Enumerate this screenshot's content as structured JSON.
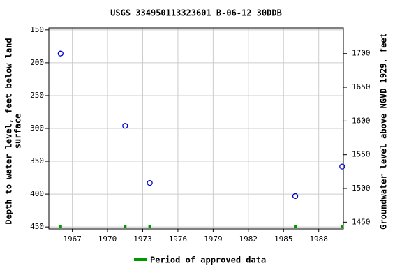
{
  "chart_data": {
    "type": "scatter",
    "title": "USGS 334950113323601 B-06-12 30DDB",
    "ylabel": [
      "Depth to water level, feet below land",
      "surface"
    ],
    "y2label": "Groundwater level above NGVD 1929, feet",
    "x": [
      1966.0,
      1971.5,
      1973.6,
      1986.0,
      1990.0
    ],
    "series": [
      {
        "name": "Depth to water level",
        "color": "#0000cc",
        "values": [
          186,
          296,
          383,
          403,
          358
        ]
      }
    ],
    "approved": {
      "name": "Period of approved data",
      "color": "#009900",
      "x": [
        1966.0,
        1971.5,
        1973.6,
        1986.0,
        1990.0
      ]
    },
    "xlim": [
      1965,
      1990.1
    ],
    "xticks": [
      1967,
      1970,
      1973,
      1976,
      1979,
      1982,
      1985,
      1988
    ],
    "ylim": [
      147,
      453
    ],
    "y_inverted": true,
    "yticks": [
      150,
      200,
      250,
      300,
      350,
      400,
      450
    ],
    "y2lim": [
      1440,
      1738
    ],
    "y2ticks": [
      1450,
      1500,
      1550,
      1600,
      1650,
      1700
    ],
    "grid": true
  }
}
